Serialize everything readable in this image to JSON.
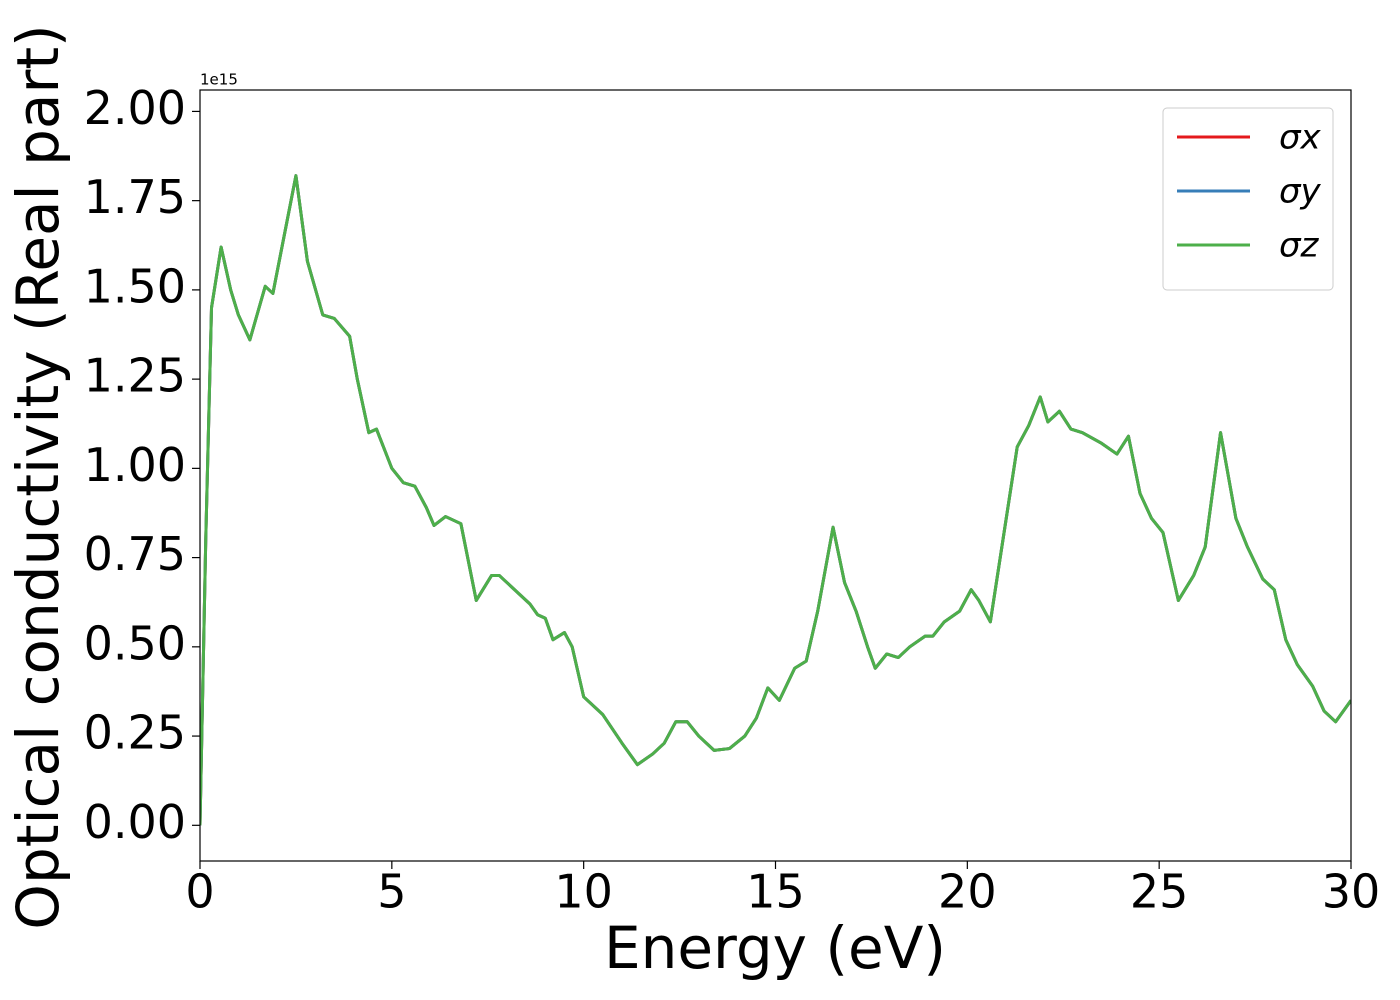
{
  "chart_data": {
    "type": "line",
    "xlabel": "Energy (eV)",
    "ylabel": "Optical conductivity (Real part)",
    "y_offset_label": "1e15",
    "x": [
      0,
      0.15,
      0.3,
      0.55,
      0.8,
      1.0,
      1.3,
      1.7,
      1.9,
      2.1,
      2.5,
      2.8,
      3.2,
      3.5,
      3.9,
      4.1,
      4.4,
      4.6,
      5.0,
      5.3,
      5.6,
      5.9,
      6.1,
      6.4,
      6.8,
      7.2,
      7.6,
      7.8,
      8.2,
      8.6,
      8.8,
      9.0,
      9.2,
      9.5,
      9.7,
      10.0,
      10.5,
      11.0,
      11.4,
      11.8,
      12.1,
      12.4,
      12.7,
      13.0,
      13.4,
      13.8,
      14.2,
      14.5,
      14.8,
      15.1,
      15.5,
      15.8,
      16.1,
      16.5,
      16.8,
      17.1,
      17.4,
      17.6,
      17.9,
      18.2,
      18.5,
      18.9,
      19.1,
      19.4,
      19.8,
      20.1,
      20.3,
      20.6,
      21.0,
      21.3,
      21.6,
      21.9,
      22.1,
      22.4,
      22.7,
      23.0,
      23.5,
      23.9,
      24.2,
      24.5,
      24.8,
      25.1,
      25.5,
      25.9,
      26.2,
      26.6,
      27.0,
      27.3,
      27.7,
      28.0,
      28.3,
      28.6,
      29.0,
      29.3,
      29.6,
      30
    ],
    "series": [
      {
        "name": "σx",
        "color": "#e41a1c",
        "values": [
          0.0,
          0.8,
          1.45,
          1.62,
          1.5,
          1.43,
          1.36,
          1.51,
          1.49,
          1.6,
          1.82,
          1.58,
          1.43,
          1.42,
          1.37,
          1.25,
          1.1,
          1.11,
          1.0,
          0.96,
          0.95,
          0.89,
          0.84,
          0.865,
          0.845,
          0.63,
          0.7,
          0.7,
          0.66,
          0.62,
          0.59,
          0.58,
          0.52,
          0.54,
          0.5,
          0.36,
          0.31,
          0.23,
          0.17,
          0.2,
          0.23,
          0.29,
          0.29,
          0.25,
          0.21,
          0.215,
          0.25,
          0.3,
          0.385,
          0.35,
          0.44,
          0.46,
          0.6,
          0.835,
          0.68,
          0.6,
          0.5,
          0.44,
          0.48,
          0.47,
          0.5,
          0.53,
          0.53,
          0.57,
          0.6,
          0.66,
          0.63,
          0.57,
          0.85,
          1.06,
          1.12,
          1.2,
          1.13,
          1.16,
          1.11,
          1.1,
          1.07,
          1.04,
          1.09,
          0.93,
          0.86,
          0.82,
          0.63,
          0.7,
          0.78,
          1.1,
          0.86,
          0.78,
          0.69,
          0.66,
          0.52,
          0.45,
          0.39,
          0.32,
          0.29,
          0.35
        ]
      },
      {
        "name": "σy",
        "color": "#377eb8",
        "values": [
          0.0,
          0.8,
          1.45,
          1.62,
          1.5,
          1.43,
          1.36,
          1.51,
          1.49,
          1.6,
          1.82,
          1.58,
          1.43,
          1.42,
          1.37,
          1.25,
          1.1,
          1.11,
          1.0,
          0.96,
          0.95,
          0.89,
          0.84,
          0.865,
          0.845,
          0.63,
          0.7,
          0.7,
          0.66,
          0.62,
          0.59,
          0.58,
          0.52,
          0.54,
          0.5,
          0.36,
          0.31,
          0.23,
          0.17,
          0.2,
          0.23,
          0.29,
          0.29,
          0.25,
          0.21,
          0.215,
          0.25,
          0.3,
          0.385,
          0.35,
          0.44,
          0.46,
          0.6,
          0.835,
          0.68,
          0.6,
          0.5,
          0.44,
          0.48,
          0.47,
          0.5,
          0.53,
          0.53,
          0.57,
          0.6,
          0.66,
          0.63,
          0.57,
          0.85,
          1.06,
          1.12,
          1.2,
          1.13,
          1.16,
          1.11,
          1.1,
          1.07,
          1.04,
          1.09,
          0.93,
          0.86,
          0.82,
          0.63,
          0.7,
          0.78,
          1.1,
          0.86,
          0.78,
          0.69,
          0.66,
          0.52,
          0.45,
          0.39,
          0.32,
          0.29,
          0.35
        ]
      },
      {
        "name": "σz",
        "color": "#4daf4a",
        "values": [
          0.0,
          0.8,
          1.45,
          1.62,
          1.5,
          1.43,
          1.36,
          1.51,
          1.49,
          1.6,
          1.82,
          1.58,
          1.43,
          1.42,
          1.37,
          1.25,
          1.1,
          1.11,
          1.0,
          0.96,
          0.95,
          0.89,
          0.84,
          0.865,
          0.845,
          0.63,
          0.7,
          0.7,
          0.66,
          0.62,
          0.59,
          0.58,
          0.52,
          0.54,
          0.5,
          0.36,
          0.31,
          0.23,
          0.17,
          0.2,
          0.23,
          0.29,
          0.29,
          0.25,
          0.21,
          0.215,
          0.25,
          0.3,
          0.385,
          0.35,
          0.44,
          0.46,
          0.6,
          0.835,
          0.68,
          0.6,
          0.5,
          0.44,
          0.48,
          0.47,
          0.5,
          0.53,
          0.53,
          0.57,
          0.6,
          0.66,
          0.63,
          0.57,
          0.85,
          1.06,
          1.12,
          1.2,
          1.13,
          1.16,
          1.11,
          1.1,
          1.07,
          1.04,
          1.09,
          0.93,
          0.86,
          0.82,
          0.63,
          0.7,
          0.78,
          1.1,
          0.86,
          0.78,
          0.69,
          0.66,
          0.52,
          0.45,
          0.39,
          0.32,
          0.29,
          0.35
        ]
      }
    ],
    "xlim": [
      0,
      30
    ],
    "xticks": [
      0,
      5,
      10,
      15,
      20,
      25,
      30
    ],
    "ylim": [
      -0.1,
      2.06
    ],
    "yticks": [
      {
        "value": 0,
        "label": "0.00"
      },
      0.25,
      {
        "value": 0.5,
        "label": "0.50"
      },
      0.75,
      {
        "value": 1,
        "label": "1.00"
      },
      1.25,
      {
        "value": 1.5,
        "label": "1.50"
      },
      1.75,
      {
        "value": 2,
        "label": "2.00"
      }
    ],
    "legend": "upper right",
    "grid": false
  }
}
